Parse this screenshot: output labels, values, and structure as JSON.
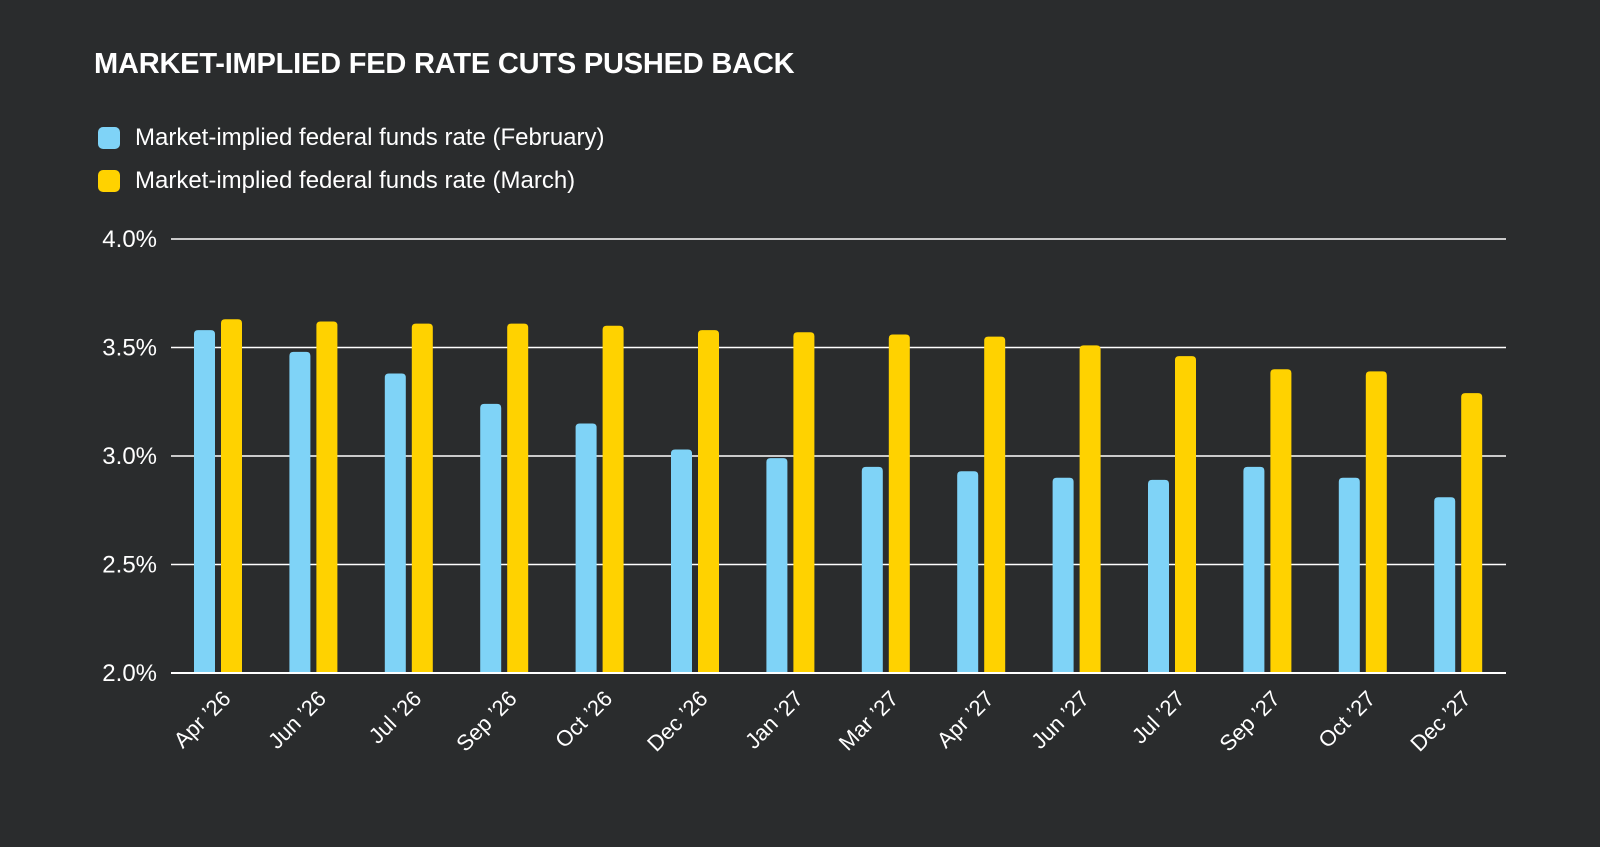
{
  "chart_data": {
    "type": "bar",
    "title": "MARKET-IMPLIED FED RATE CUTS PUSHED BACK",
    "xlabel": "",
    "ylabel": "",
    "categories": [
      "Apr ’26",
      "Jun ’26",
      "Jul ’26",
      "Sep ’26",
      "Oct ’26",
      "Dec ’26",
      "Jan ’27",
      "Mar ’27",
      "Apr ’27",
      "Jun ’27",
      "Jul ’27",
      "Sep ’27",
      "Oct ’27",
      "Dec ’27"
    ],
    "series": [
      {
        "name": "Market-implied federal funds rate (February)",
        "color": "#7fd3f7",
        "values": [
          3.58,
          3.48,
          3.38,
          3.24,
          3.15,
          3.03,
          2.99,
          2.95,
          2.93,
          2.9,
          2.89,
          2.95,
          2.9,
          2.81
        ]
      },
      {
        "name": "Market-implied federal funds rate (March)",
        "color": "#ffd200",
        "values": [
          3.63,
          3.62,
          3.61,
          3.61,
          3.6,
          3.58,
          3.57,
          3.56,
          3.55,
          3.51,
          3.46,
          3.4,
          3.39,
          3.29
        ]
      }
    ],
    "ylim": [
      2.0,
      4.0
    ],
    "yticks": [
      "2.0%",
      "2.5%",
      "3.0%",
      "3.5%",
      "4.0%"
    ],
    "ytick_values": [
      2.0,
      2.5,
      3.0,
      3.5,
      4.0
    ],
    "grid": true,
    "legend_position": "top-left",
    "colors": {
      "background": "#2a2c2d",
      "grid": "#ffffff",
      "text": "#ffffff"
    }
  }
}
